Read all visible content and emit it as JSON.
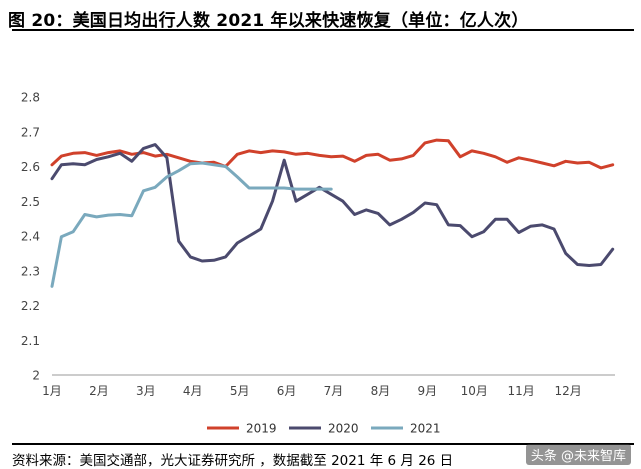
{
  "title": "图 20：美国日均出行人数 2021 年以来快速恢复（单位：亿人次）",
  "source": "资料来源：美国交通部，光大证券研究所 ，数据截至 2021 年 6 月 26 日",
  "watermark": "头条 @未来智库",
  "chart_data": {
    "type": "line",
    "ylim": [
      2.0,
      2.8
    ],
    "yticks": [
      "2",
      "2.1",
      "2.2",
      "2.3",
      "2.4",
      "2.5",
      "2.6",
      "2.7",
      "2.8"
    ],
    "x_range": [
      1,
      13
    ],
    "xticks": [
      "1月",
      "2月",
      "3月",
      "4月",
      "5月",
      "6月",
      "7月",
      "8月",
      "9月",
      "10月",
      "11月",
      "12月"
    ],
    "legend_position": "bottom",
    "series": [
      {
        "name": "2019",
        "color": "#d0412b",
        "x": [
          1.0,
          1.2,
          1.45,
          1.7,
          1.95,
          2.2,
          2.45,
          2.7,
          2.95,
          3.2,
          3.45,
          3.7,
          3.95,
          4.2,
          4.45,
          4.7,
          4.95,
          5.2,
          5.45,
          5.7,
          5.95,
          6.2,
          6.45,
          6.7,
          6.95,
          7.2,
          7.45,
          7.7,
          7.95,
          8.2,
          8.45,
          8.7,
          8.95,
          9.2,
          9.45,
          9.7,
          9.95,
          10.2,
          10.45,
          10.7,
          10.95,
          11.2,
          11.45,
          11.7,
          11.95,
          12.2,
          12.45,
          12.7,
          12.95
        ],
        "y": [
          2.605,
          2.63,
          2.638,
          2.64,
          2.632,
          2.64,
          2.645,
          2.635,
          2.64,
          2.63,
          2.635,
          2.625,
          2.615,
          2.61,
          2.612,
          2.6,
          2.635,
          2.645,
          2.64,
          2.645,
          2.642,
          2.635,
          2.638,
          2.632,
          2.628,
          2.63,
          2.615,
          2.632,
          2.635,
          2.618,
          2.622,
          2.632,
          2.668,
          2.676,
          2.674,
          2.628,
          2.645,
          2.638,
          2.628,
          2.612,
          2.625,
          2.618,
          2.61,
          2.602,
          2.615,
          2.61,
          2.612,
          2.596,
          2.605
        ]
      },
      {
        "name": "2020",
        "color": "#4b4a6e",
        "x": [
          1.0,
          1.2,
          1.45,
          1.7,
          1.95,
          2.2,
          2.45,
          2.7,
          2.95,
          3.2,
          3.45,
          3.7,
          3.95,
          4.2,
          4.45,
          4.7,
          4.95,
          5.2,
          5.45,
          5.7,
          5.95,
          6.2,
          6.45,
          6.7,
          6.95,
          7.2,
          7.45,
          7.7,
          7.95,
          8.2,
          8.45,
          8.7,
          8.95,
          9.2,
          9.45,
          9.7,
          9.95,
          10.2,
          10.45,
          10.7,
          10.95,
          11.2,
          11.45,
          11.7,
          11.95,
          12.2,
          12.45,
          12.7,
          12.95
        ],
        "y": [
          2.565,
          2.605,
          2.608,
          2.605,
          2.62,
          2.628,
          2.638,
          2.615,
          2.652,
          2.663,
          2.625,
          2.385,
          2.34,
          2.328,
          2.33,
          2.34,
          2.38,
          2.4,
          2.42,
          2.5,
          2.618,
          2.5,
          2.52,
          2.54,
          2.52,
          2.5,
          2.462,
          2.475,
          2.465,
          2.432,
          2.448,
          2.468,
          2.495,
          2.49,
          2.432,
          2.43,
          2.398,
          2.412,
          2.448,
          2.448,
          2.41,
          2.428,
          2.432,
          2.42,
          2.35,
          2.318,
          2.315,
          2.318,
          2.362
        ]
      },
      {
        "name": "2021",
        "color": "#7aa9bd",
        "x": [
          1.0,
          1.2,
          1.45,
          1.7,
          1.95,
          2.2,
          2.45,
          2.7,
          2.95,
          3.2,
          3.45,
          3.7,
          3.95,
          4.2,
          4.45,
          4.7,
          4.95,
          5.2,
          5.45,
          5.7,
          5.95,
          6.2,
          6.45,
          6.7,
          6.95
        ],
        "y": [
          2.255,
          2.398,
          2.412,
          2.462,
          2.455,
          2.46,
          2.462,
          2.458,
          2.53,
          2.54,
          2.57,
          2.588,
          2.608,
          2.61,
          2.605,
          2.6,
          2.57,
          2.538,
          2.538,
          2.538,
          2.538,
          2.535,
          2.535,
          2.535,
          2.535
        ]
      }
    ]
  }
}
